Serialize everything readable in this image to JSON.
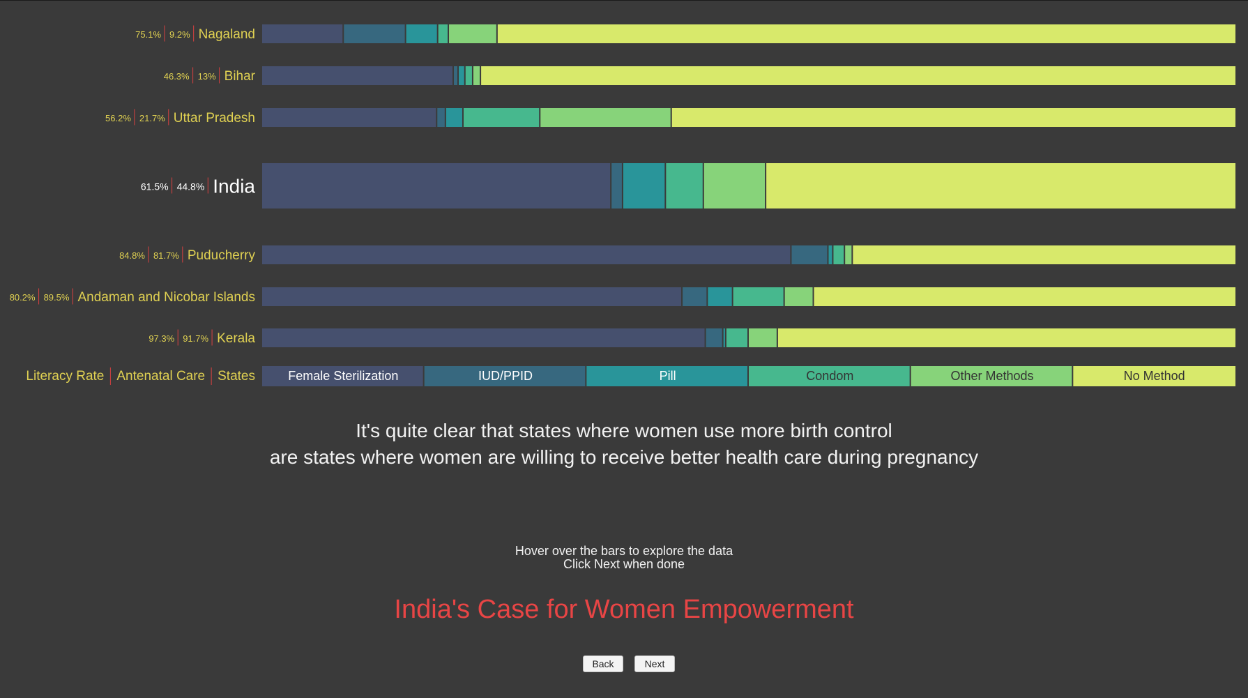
{
  "chart_data": {
    "type": "bar",
    "orientation": "horizontal",
    "stacked": true,
    "percent_scale": true,
    "categories": [
      "Nagaland",
      "Bihar",
      "Uttar Pradesh",
      "India",
      "Puducherry",
      "Andaman and Nicobar Islands",
      "Kerala"
    ],
    "highlighted_category": "India",
    "literacy_rate": [
      "75.1%",
      "46.3%",
      "56.2%",
      "61.5%",
      "84.8%",
      "80.2%",
      "97.3%"
    ],
    "antenatal_care": [
      "9.2%",
      "13%",
      "21.7%",
      "44.8%",
      "81.7%",
      "89.5%",
      "91.7%"
    ],
    "series": [
      {
        "name": "Female Sterilization",
        "color": "#46506e",
        "text_color": "#ffffff",
        "values": [
          8.4,
          19.7,
          18.0,
          35.9,
          54.4,
          43.2,
          45.6
        ]
      },
      {
        "name": "IUD/PPID",
        "color": "#37687f",
        "text_color": "#ffffff",
        "values": [
          6.4,
          0.5,
          0.9,
          1.2,
          3.8,
          2.6,
          1.8
        ]
      },
      {
        "name": "Pill",
        "color": "#29959a",
        "text_color": "#ffffff",
        "values": [
          3.3,
          0.7,
          1.8,
          4.4,
          0.5,
          2.6,
          0.3
        ]
      },
      {
        "name": "Condom",
        "color": "#47b88e",
        "text_color": "#333333",
        "values": [
          1.1,
          0.8,
          7.9,
          3.9,
          1.2,
          5.3,
          2.3
        ]
      },
      {
        "name": "Other Methods",
        "color": "#87d37a",
        "text_color": "#333333",
        "values": [
          5.0,
          0.8,
          13.5,
          6.4,
          0.8,
          3.0,
          3.0
        ]
      },
      {
        "name": "No Method",
        "color": "#d8e96b",
        "text_color": "#333333",
        "values": [
          75.8,
          77.5,
          57.9,
          48.2,
          39.3,
          43.3,
          47.0
        ]
      }
    ],
    "legend_header": [
      "Literacy Rate",
      "Antenatal Care",
      "States"
    ],
    "label_color": "#e0d152",
    "divider_color": "#d94040"
  },
  "story": {
    "line1": "It's quite clear that states where women use more birth control",
    "line2": "are states where women are willing to receive better health care during pregnancy"
  },
  "hint": {
    "line1": "Hover over the bars to explore the data",
    "line2": "Click Next when done"
  },
  "page_title": "India's Case for Women Empowerment",
  "nav": {
    "back": "Back",
    "next": "Next"
  }
}
